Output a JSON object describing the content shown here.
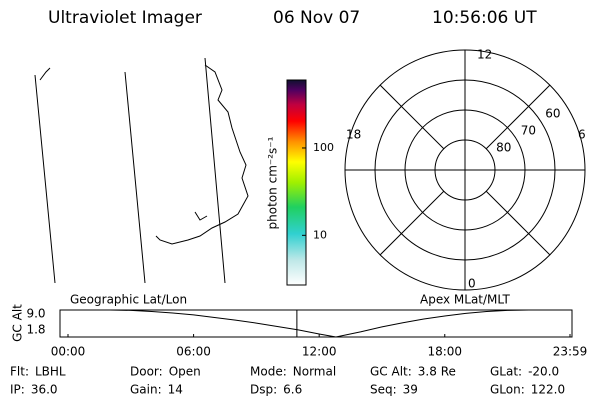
{
  "header": {
    "title": "Ultraviolet Imager",
    "date": "06 Nov 07",
    "time": "10:56:06 UT"
  },
  "colorbar": {
    "label": "photon cm⁻²s⁻¹",
    "scale": "log",
    "lim": [
      2.7,
      600
    ],
    "ticks": [
      10,
      100
    ]
  },
  "polar": {
    "latlim": [
      50,
      90
    ],
    "lat_ticks": [
      60,
      70,
      80
    ],
    "mlt_labels": [
      "12",
      "18",
      "6",
      "0"
    ]
  },
  "timeline": {
    "type": "line",
    "left_label": "Geographic Lat/Lon",
    "right_label": "Apex MLat/MLT",
    "ylabel": "GC Alt",
    "xlim": [
      0,
      23.983
    ],
    "xticks": [
      {
        "value": 0,
        "label": "00:00"
      },
      {
        "value": 6,
        "label": "06:00"
      },
      {
        "value": 12,
        "label": "12:00"
      },
      {
        "value": 18,
        "label": "18:00"
      },
      {
        "value": 23.983,
        "label": "23:59"
      }
    ],
    "ylim": [
      1.8,
      9
    ],
    "yticks": [
      {
        "value": 9,
        "label": "9.0"
      },
      1.8
    ],
    "x": [
      0,
      2,
      3,
      4,
      5,
      6,
      7,
      8,
      9,
      10,
      11,
      12,
      12.8,
      14,
      15,
      16,
      17,
      18,
      19,
      20,
      21,
      22,
      23.983
    ],
    "values": [
      9.0,
      9.0,
      8.9,
      8.6,
      8.2,
      7.7,
      7.0,
      6.3,
      5.5,
      4.6,
      3.7,
      2.6,
      1.8,
      3.2,
      4.5,
      5.6,
      6.6,
      7.4,
      8.1,
      8.6,
      8.9,
      9.0,
      9.0
    ],
    "color": "#000000",
    "marker_time": 10.935,
    "marker_color": "#ff0000"
  },
  "footer": [
    [
      {
        "label": "Flt:",
        "value": "LBHL"
      },
      {
        "label": "IP:",
        "value": "36.0"
      }
    ],
    [
      {
        "label": "Door:",
        "value": "Open"
      },
      {
        "label": "Gain:",
        "value": "14"
      }
    ],
    [
      {
        "label": "Mode:",
        "value": "Normal"
      },
      {
        "label": "Dsp:",
        "value": "6.6"
      }
    ],
    [
      {
        "label": "GC Alt:",
        "value": "3.8 Re"
      },
      {
        "label": "Seq:",
        "value": "39"
      }
    ],
    [
      {
        "label": "GLat:",
        "value": "-20.0"
      },
      {
        "label": "GLon:",
        "value": "122.0"
      }
    ]
  ]
}
